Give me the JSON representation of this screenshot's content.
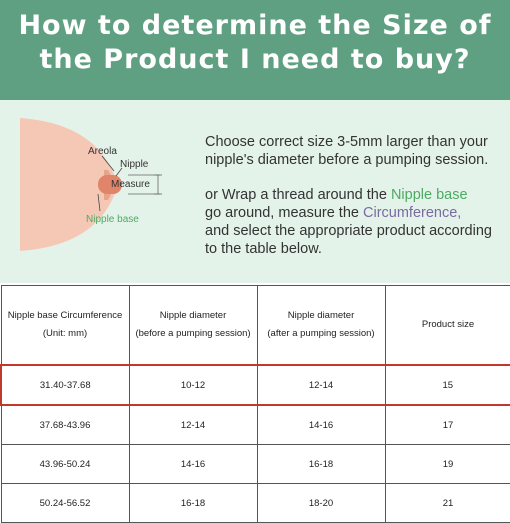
{
  "header": {
    "line1": "How to determine the Size of",
    "line2": "the Product I need to buy?"
  },
  "diagram": {
    "areola_label": "Areola",
    "nipple_label": "Nipple",
    "measure_label": "Measure",
    "nipple_base_label": "Nipple base"
  },
  "instructions": {
    "line1": "Choose correct size 3-5mm larger than your",
    "line2": "nipple's diameter before a pumping session.",
    "line3_pre": "or Wrap a thread around the ",
    "line3_highlight": "Nipple base",
    "line4_pre": "go around, measure the ",
    "line4_highlight": "Circumference,",
    "line5": "and select the appropriate product according",
    "line6": "to the table below."
  },
  "table": {
    "headers": [
      {
        "line1": "Nipple base Circumference",
        "line2": "(Unit: mm)"
      },
      {
        "line1": "Nipple diameter",
        "line2": "(before a pumping session)"
      },
      {
        "line1": "Nipple diameter",
        "line2": "(after a pumping session)"
      },
      {
        "line1": "Product size",
        "line2": ""
      }
    ],
    "rows": [
      [
        "31.40-37.68",
        "10-12",
        "12-14",
        "15"
      ],
      [
        "37.68-43.96",
        "12-14",
        "14-16",
        "17"
      ],
      [
        "43.96-50.24",
        "14-16",
        "16-18",
        "19"
      ],
      [
        "50.24-56.52",
        "16-18",
        "18-20",
        "21"
      ]
    ]
  },
  "colors": {
    "header_bg": "#5f9f82",
    "panel_bg": "#e4f3ea",
    "highlight_green": "#4daa63",
    "highlight_purple": "#7a6aa0",
    "row_highlight_border": "#c0392b"
  }
}
